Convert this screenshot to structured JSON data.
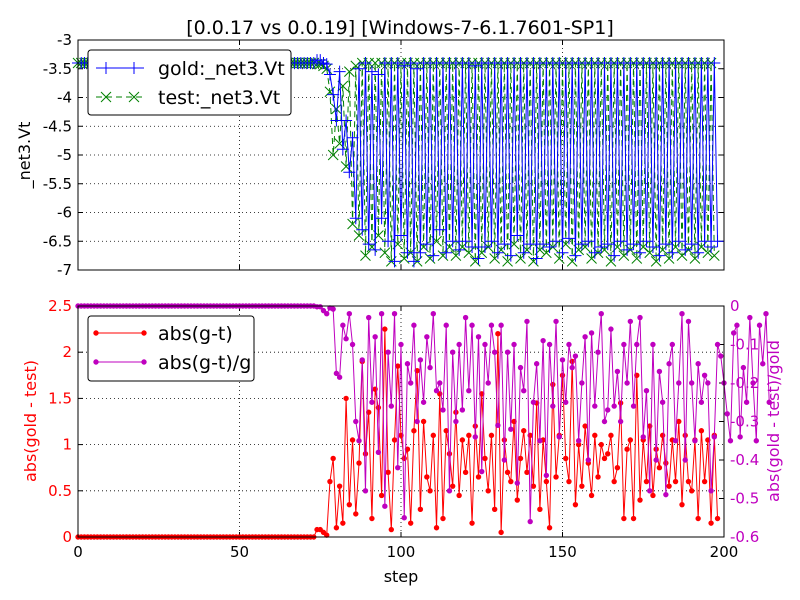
{
  "title": "[0.0.17 vs 0.0.19] [Windows-7-6.1.7601-SP1]",
  "colors": {
    "gold": "#0000ff",
    "test": "#008000",
    "absdiff": "#ff0000",
    "reldiff": "#bf00bf",
    "grid": "#000000",
    "legend_border": "#000000"
  },
  "chart_data": [
    {
      "type": "line",
      "ylabel": "_net3.Vt",
      "xlim": [
        0,
        200
      ],
      "ylim": [
        -7,
        -3
      ],
      "yticks": [
        -7,
        -6.5,
        -6,
        -5.5,
        -5,
        -4.5,
        -4,
        -3.5,
        -3
      ],
      "ytick_labels": [
        "-7",
        "-6.5",
        "-6",
        "-5.5",
        "-5",
        "-4.5",
        "-4",
        "-3.5",
        "-3"
      ],
      "xticks": [
        0,
        50,
        100,
        150,
        200
      ],
      "grid": true,
      "legend": {
        "placement": "top-left",
        "entries": [
          {
            "name": "gold:_net3.Vt",
            "marker": "+",
            "linestyle": "solid",
            "color": "#0000ff"
          },
          {
            "name": "test:_net3.Vt",
            "marker": "x",
            "linestyle": "dashed",
            "color": "#008000"
          }
        ]
      },
      "series": [
        {
          "name": "gold:_net3.Vt",
          "x_start": 0,
          "x_step": 1,
          "values": [
            -3.4,
            -3.4,
            -3.4,
            -3.4,
            -3.4,
            -3.4,
            -3.4,
            -3.4,
            -3.4,
            -3.4,
            -3.4,
            -3.4,
            -3.4,
            -3.4,
            -3.4,
            -3.4,
            -3.4,
            -3.4,
            -3.4,
            -3.4,
            -3.4,
            -3.4,
            -3.4,
            -3.4,
            -3.4,
            -3.4,
            -3.4,
            -3.4,
            -3.4,
            -3.4,
            -3.4,
            -3.4,
            -3.4,
            -3.4,
            -3.4,
            -3.4,
            -3.4,
            -3.4,
            -3.4,
            -3.4,
            -3.4,
            -3.4,
            -3.4,
            -3.4,
            -3.4,
            -3.4,
            -3.4,
            -3.4,
            -3.4,
            -3.4,
            -3.4,
            -3.4,
            -3.4,
            -3.4,
            -3.4,
            -3.4,
            -3.4,
            -3.4,
            -3.4,
            -3.4,
            -3.4,
            -3.4,
            -3.4,
            -3.4,
            -3.4,
            -3.4,
            -3.4,
            -3.4,
            -3.4,
            -3.4,
            -3.4,
            -3.4,
            -3.4,
            -3.4,
            -3.35,
            -3.35,
            -3.4,
            -3.42,
            -3.6,
            -3.95,
            -4.4,
            -3.55,
            -4.9,
            -4.4,
            -5.3,
            -4.7,
            -6.1,
            -3.5,
            -6.3,
            -3.4,
            -6.55,
            -3.55,
            -6.65,
            -3.6,
            -6.1,
            -3.4,
            -6.5,
            -3.4,
            -6.85,
            -3.4,
            -6.4,
            -3.45,
            -6.7,
            -3.4,
            -6.85,
            -3.5,
            -6.7,
            -3.4,
            -6.55,
            -3.4,
            -6.75,
            -3.4,
            -6.3,
            -3.4,
            -6.7,
            -3.4,
            -6.5,
            -3.4,
            -6.65,
            -3.4,
            -6.5,
            -3.4,
            -6.6,
            -3.45,
            -6.8,
            -3.4,
            -6.6,
            -3.4,
            -6.5,
            -3.4,
            -6.7,
            -3.4,
            -6.55,
            -3.4,
            -6.75,
            -3.4,
            -6.4,
            -3.4,
            -6.7,
            -3.4,
            -6.55,
            -3.4,
            -6.8,
            -3.4,
            -6.55,
            -3.4,
            -6.6,
            -3.4,
            -6.5,
            -3.4,
            -6.7,
            -3.4,
            -6.45,
            -3.4,
            -6.75,
            -3.4,
            -6.55,
            -3.4,
            -6.5,
            -3.4,
            -6.7,
            -3.4,
            -6.6,
            -3.4,
            -6.55,
            -3.4,
            -6.75,
            -3.4,
            -6.5,
            -3.4,
            -6.65,
            -3.4,
            -6.55,
            -3.4,
            -6.7,
            -3.4,
            -6.5,
            -3.4,
            -6.6,
            -3.4,
            -6.75,
            -3.4,
            -6.55,
            -3.4,
            -6.7,
            -3.4,
            -6.5,
            -3.4,
            -6.65,
            -3.4,
            -6.55,
            -3.4,
            -6.7,
            -3.4,
            -6.5,
            -3.4,
            -6.6,
            -3.4,
            -6.5
          ]
        },
        {
          "name": "test:_net3.Vt",
          "x_start": 0,
          "x_step": 1,
          "values": [
            -3.4,
            -3.4,
            -3.4,
            -3.4,
            -3.4,
            -3.4,
            -3.4,
            -3.4,
            -3.4,
            -3.4,
            -3.4,
            -3.4,
            -3.4,
            -3.4,
            -3.4,
            -3.4,
            -3.4,
            -3.4,
            -3.4,
            -3.4,
            -3.4,
            -3.4,
            -3.4,
            -3.4,
            -3.4,
            -3.4,
            -3.4,
            -3.4,
            -3.4,
            -3.4,
            -3.4,
            -3.4,
            -3.4,
            -3.4,
            -3.4,
            -3.4,
            -3.4,
            -3.4,
            -3.4,
            -3.4,
            -3.4,
            -3.4,
            -3.4,
            -3.4,
            -3.4,
            -3.4,
            -3.4,
            -3.4,
            -3.4,
            -3.4,
            -3.4,
            -3.4,
            -3.4,
            -3.4,
            -3.4,
            -3.4,
            -3.4,
            -3.4,
            -3.4,
            -3.4,
            -3.4,
            -3.4,
            -3.4,
            -3.4,
            -3.4,
            -3.4,
            -3.4,
            -3.4,
            -3.4,
            -3.4,
            -3.4,
            -3.4,
            -3.4,
            -3.4,
            -3.42,
            -3.42,
            -3.45,
            -3.5,
            -3.9,
            -5.0,
            -4.2,
            -4.8,
            -3.8,
            -5.2,
            -3.55,
            -6.2,
            -3.45,
            -6.4,
            -3.4,
            -6.75,
            -3.4,
            -6.6,
            -3.4,
            -6.4,
            -3.4,
            -6.7,
            -3.4,
            -6.85,
            -3.4,
            -6.55,
            -3.4,
            -6.8,
            -3.4,
            -6.7,
            -3.4,
            -6.85,
            -3.4,
            -6.6,
            -3.4,
            -6.8,
            -3.4,
            -6.5,
            -3.4,
            -6.75,
            -3.4,
            -6.6,
            -3.4,
            -6.75,
            -3.4,
            -6.6,
            -3.4,
            -6.7,
            -3.4,
            -6.85,
            -3.4,
            -6.7,
            -3.4,
            -6.6,
            -3.4,
            -6.8,
            -3.4,
            -6.65,
            -3.4,
            -6.85,
            -3.4,
            -6.55,
            -3.4,
            -6.8,
            -3.4,
            -6.65,
            -3.4,
            -6.85,
            -3.4,
            -6.65,
            -3.4,
            -6.7,
            -3.4,
            -6.6,
            -3.4,
            -6.8,
            -3.4,
            -6.55,
            -3.4,
            -6.85,
            -3.4,
            -6.65,
            -3.4,
            -6.6,
            -3.4,
            -6.8,
            -3.4,
            -6.7,
            -3.4,
            -6.65,
            -3.4,
            -6.85,
            -3.4,
            -6.6,
            -3.4,
            -6.75,
            -3.4,
            -6.65,
            -3.4,
            -6.8,
            -3.4,
            -6.6,
            -3.4,
            -6.7,
            -3.4,
            -6.85,
            -3.4,
            -6.65,
            -3.4,
            -6.8,
            -3.4,
            -6.6,
            -3.4,
            -6.75,
            -3.4,
            -6.65,
            -3.4,
            -6.8,
            -3.4,
            -6.6,
            -3.4,
            -6.7,
            -3.4,
            -6.75
          ]
        }
      ]
    },
    {
      "type": "line",
      "xlabel": "step",
      "ylabel": "abs(gold - test)",
      "ylabel_right": "abs(gold - test)/gold",
      "xlim": [
        0,
        200
      ],
      "ylim": [
        0,
        2.5
      ],
      "ylim_right": [
        -0.6,
        0
      ],
      "xticks": [
        0,
        50,
        100,
        150,
        200
      ],
      "xtick_labels": [
        "0",
        "50",
        "100",
        "150",
        "200"
      ],
      "yticks": [
        0,
        0.5,
        1,
        1.5,
        2,
        2.5
      ],
      "ytick_labels": [
        "0",
        "0.5",
        "1",
        "1.5",
        "2",
        "2.5"
      ],
      "yticks_right": [
        -0.6,
        -0.5,
        -0.4,
        -0.3,
        -0.2,
        -0.1,
        0
      ],
      "ytick_labels_right": [
        "-0.6",
        "-0.5",
        "-0.4",
        "-0.3",
        "-0.2",
        "-0.1",
        "0"
      ],
      "grid": true,
      "legend": {
        "placement": "top-left",
        "entries": [
          {
            "name": "abs(g-t)",
            "marker": "o",
            "color": "#ff0000"
          },
          {
            "name": "abs(g-t)/g",
            "marker": "o",
            "color": "#bf00bf"
          }
        ]
      },
      "series": [
        {
          "name": "abs(g-t)",
          "axis": "left",
          "x_start": 0,
          "x_step": 1,
          "values": [
            0,
            0,
            0,
            0,
            0,
            0,
            0,
            0,
            0,
            0,
            0,
            0,
            0,
            0,
            0,
            0,
            0,
            0,
            0,
            0,
            0,
            0,
            0,
            0,
            0,
            0,
            0,
            0,
            0,
            0,
            0,
            0,
            0,
            0,
            0,
            0,
            0,
            0,
            0,
            0,
            0,
            0,
            0,
            0,
            0,
            0,
            0,
            0,
            0,
            0,
            0,
            0,
            0,
            0,
            0,
            0,
            0,
            0,
            0,
            0,
            0,
            0,
            0,
            0,
            0,
            0,
            0,
            0,
            0,
            0,
            0,
            0,
            0,
            0,
            0.08,
            0.08,
            0.05,
            0.02,
            0.6,
            0.85,
            0.1,
            0.55,
            0.15,
            1.5,
            0.35,
            1.05,
            0.25,
            0.8,
            1.9,
            0.9,
            1.35,
            0.2,
            1.6,
            1.4,
            0.45,
            2.25,
            0.7,
            0.08,
            1.05,
            1.85,
            1.1,
            0.85,
            0.95,
            0.15,
            1.15,
            1.8,
            0.3,
            1.25,
            0.65,
            0.5,
            1.1,
            0.1,
            1.55,
            0.2,
            1.15,
            0.9,
            0.55,
            1.35,
            0.45,
            1.05,
            0.7,
            1.1,
            0.15,
            1.2,
            0.65,
            1.55,
            0.85,
            0.5,
            1.1,
            0.3,
            2.2,
            0.05,
            1.05,
            0.7,
            0.6,
            1.25,
            0.4,
            0.85,
            1.15,
            0.7,
            1.1,
            0.55,
            1.45,
            0.3,
            1.05,
            0.6,
            0.1,
            1.65,
            0.65,
            1.1,
            1.75,
            0.85,
            0.6,
            1.9,
            0.35,
            1.0,
            0.55,
            1.2,
            0.8,
            0.45,
            1.1,
            0.65,
            1.0,
            0.85,
            0.9,
            1.1,
            0.6,
            0.75,
            1.45,
            0.2,
            0.95,
            1.05,
            0.2,
            1.75,
            0.4,
            1.05,
            0.6,
            1.2,
            0.45,
            0.95,
            0.75,
            1.1,
            0.8,
            0.55,
            1.05,
            0.6,
            1.25,
            0.35,
            1.1,
            0.6,
            0.5,
            1.05,
            0.2,
            1.15,
            0.6,
            1.05,
            0.15,
            1.1,
            0.2
          ]
        },
        {
          "name": "abs(g-t)/g",
          "axis": "right",
          "x_start": 0,
          "x_step": 1,
          "values": [
            0,
            0,
            0,
            0,
            0,
            0,
            0,
            0,
            0,
            0,
            0,
            0,
            0,
            0,
            0,
            0,
            0,
            0,
            0,
            0,
            0,
            0,
            0,
            0,
            0,
            0,
            0,
            0,
            0,
            0,
            0,
            0,
            0,
            0,
            0,
            0,
            0,
            0,
            0,
            0,
            0,
            0,
            0,
            0,
            0,
            0,
            0,
            0,
            0,
            0,
            0,
            0,
            0,
            0,
            0,
            0,
            0,
            0,
            0,
            0,
            0,
            0,
            0,
            0,
            0,
            0,
            0,
            0,
            0,
            0,
            0,
            0,
            0,
            0,
            -0.002,
            -0.002,
            -0.012,
            -0.02,
            -0.005,
            -0.008,
            -0.175,
            -0.185,
            -0.05,
            -0.085,
            -0.02,
            -0.1,
            -0.3,
            -0.35,
            -0.14,
            -0.48,
            -0.03,
            -0.25,
            -0.08,
            -0.38,
            -0.02,
            -0.52,
            -0.12,
            -0.26,
            -0.02,
            -0.42,
            -0.1,
            -0.55,
            -0.15,
            -0.2,
            -0.05,
            -0.3,
            -0.14,
            -0.25,
            -0.08,
            -0.16,
            -0.02,
            -0.22,
            -0.2,
            -0.27,
            -0.05,
            -0.48,
            -0.12,
            -0.3,
            -0.1,
            -0.27,
            -0.03,
            -0.22,
            -0.05,
            -0.34,
            -0.08,
            -0.43,
            -0.1,
            -0.2,
            -0.05,
            -0.12,
            -0.31,
            -0.05,
            -0.4,
            -0.12,
            -0.32,
            -0.1,
            -0.46,
            -0.16,
            -0.22,
            -0.04,
            -0.56,
            -0.25,
            -0.15,
            -0.35,
            -0.09,
            -0.44,
            -0.1,
            -0.26,
            -0.04,
            -0.34,
            -0.14,
            -0.25,
            -0.1,
            -0.16,
            -0.13,
            -0.35,
            -0.2,
            -0.08,
            -0.4,
            -0.07,
            -0.26,
            -0.12,
            -0.02,
            -0.3,
            -0.27,
            -0.06,
            -0.26,
            -0.17,
            -0.3,
            -0.1,
            -0.2,
            -0.04,
            -0.26,
            -0.1,
            -0.03,
            -0.34,
            -0.22,
            -0.48,
            -0.1,
            -0.4,
            -0.17,
            -0.25,
            -0.49,
            -0.15,
            -0.1,
            -0.35,
            -0.2,
            -0.02,
            -0.4,
            -0.04,
            -0.2,
            -0.35,
            -0.15,
            -0.25,
            -0.18,
            -0.2,
            -0.48,
            -0.34,
            -0.1,
            -0.13,
            -0.2,
            -0.28,
            -0.35,
            -0.07,
            -0.05,
            -0.34,
            -0.16,
            -0.25,
            -0.03,
            -0.2,
            -0.35,
            -0.05,
            -0.15,
            -0.02,
            -0.25
          ]
        }
      ]
    }
  ]
}
